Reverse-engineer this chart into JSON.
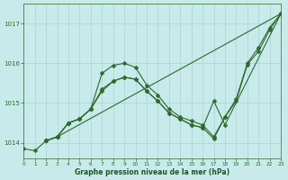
{
  "background_color": "#c8eaea",
  "grid_color": "#aad4d4",
  "line_color": "#2d6a2d",
  "xlabel": "Graphe pression niveau de la mer (hPa)",
  "xlabel_color": "#1a5a1a",
  "xlim": [
    0,
    23
  ],
  "ylim": [
    1013.6,
    1017.5
  ],
  "yticks": [
    1014,
    1015,
    1016,
    1017
  ],
  "xticks": [
    0,
    1,
    2,
    3,
    4,
    5,
    6,
    7,
    8,
    9,
    10,
    11,
    12,
    13,
    14,
    15,
    16,
    17,
    18,
    19,
    20,
    21,
    22,
    23
  ],
  "line1_x": [
    0,
    1,
    2,
    3,
    23
  ],
  "line1_y": [
    1013.85,
    1013.8,
    1014.05,
    1014.15,
    1017.25
  ],
  "line2_x": [
    2,
    3,
    4,
    5,
    6,
    7,
    8,
    9,
    10,
    11,
    12,
    13,
    14,
    15,
    16,
    17,
    18,
    19,
    20,
    21,
    22,
    23
  ],
  "line2_y": [
    1014.05,
    1014.15,
    1014.5,
    1014.6,
    1014.85,
    1015.75,
    1015.95,
    1016.0,
    1015.9,
    1015.45,
    1015.2,
    1014.85,
    1014.65,
    1014.55,
    1014.45,
    1014.15,
    1014.65,
    1015.05,
    1015.97,
    1016.3,
    1016.85,
    1017.25
  ],
  "line3_x": [
    2,
    3,
    4,
    5,
    6,
    7,
    8,
    9,
    10,
    11,
    12,
    13,
    14,
    15,
    16,
    17,
    18,
    19,
    20,
    21,
    22,
    23
  ],
  "line3_y": [
    1014.05,
    1014.15,
    1014.5,
    1014.6,
    1014.85,
    1015.3,
    1015.55,
    1015.65,
    1015.6,
    1015.3,
    1015.05,
    1014.75,
    1014.6,
    1014.45,
    1014.38,
    1014.1,
    1014.65,
    1015.1,
    1016.0,
    1016.4,
    1016.9,
    1017.25
  ],
  "line4_x": [
    2,
    3,
    4,
    5,
    6,
    7,
    8,
    9,
    10,
    11,
    12,
    13,
    14,
    15,
    16,
    17,
    18,
    23
  ],
  "line4_y": [
    1014.05,
    1014.15,
    1014.5,
    1014.6,
    1014.85,
    1015.35,
    1015.55,
    1015.65,
    1015.6,
    1015.3,
    1015.05,
    1014.75,
    1014.6,
    1014.45,
    1014.38,
    1015.05,
    1014.45,
    1017.25
  ]
}
